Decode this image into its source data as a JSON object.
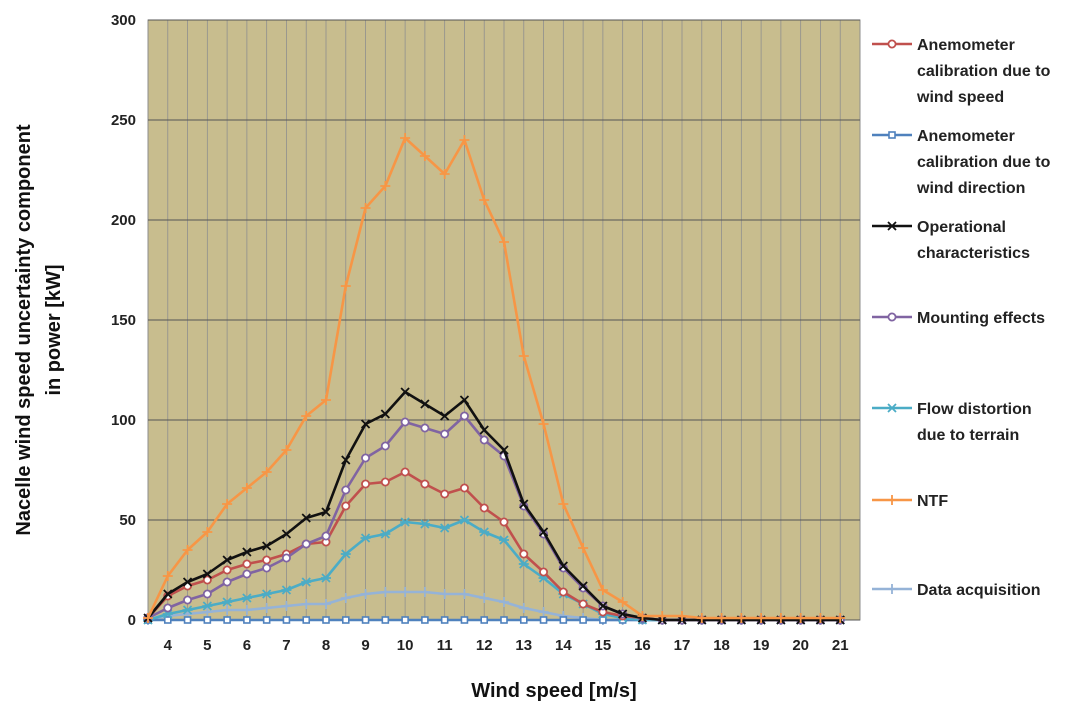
{
  "chart_data": {
    "type": "line",
    "xlabel": "Wind speed [m/s]",
    "ylabel": [
      "Nacelle wind speed uncertainty component",
      "in power [kW]"
    ],
    "ylim": [
      0,
      300
    ],
    "yticks": [
      0,
      50,
      100,
      150,
      200,
      250,
      300
    ],
    "xlim": [
      3.5,
      21.5
    ],
    "xticks": [
      4,
      5,
      6,
      7,
      8,
      9,
      10,
      11,
      12,
      13,
      14,
      15,
      16,
      17,
      18,
      19,
      20,
      21
    ],
    "grid": true,
    "legend_position": "right",
    "plot_background": "#c8bd8e",
    "x": [
      3.5,
      4,
      4.5,
      5,
      5.5,
      6,
      6.5,
      7,
      7.5,
      8,
      8.5,
      9,
      9.5,
      10,
      10.5,
      11,
      11.5,
      12,
      12.5,
      13,
      13.5,
      14,
      14.5,
      15,
      15.5,
      16,
      16.5,
      17,
      17.5,
      18,
      18.5,
      19,
      19.5,
      20,
      20.5,
      21
    ],
    "series": [
      {
        "name": "Anemometer calibration due to wind speed",
        "legend_lines": [
          "Anemometer",
          "calibration due to",
          "wind speed"
        ],
        "color": "#c0504d",
        "marker": "circle",
        "values": [
          1,
          12,
          17,
          20,
          25,
          28,
          30,
          33,
          38,
          39,
          57,
          68,
          69,
          74,
          68,
          63,
          66,
          56,
          49,
          33,
          24,
          14,
          8,
          4,
          2,
          1,
          0,
          0,
          0,
          0,
          0,
          0,
          0,
          0,
          0,
          0
        ]
      },
      {
        "name": "Anemometer calibration due to wind direction",
        "legend_lines": [
          "Anemometer",
          "calibration due to",
          "wind direction"
        ],
        "color": "#4f81bd",
        "marker": "square",
        "values": [
          0,
          0,
          0,
          0,
          0,
          0,
          0,
          0,
          0,
          0,
          0,
          0,
          0,
          0,
          0,
          0,
          0,
          0,
          0,
          0,
          0,
          0,
          0,
          0,
          0,
          0,
          0,
          0,
          0,
          0,
          0,
          0,
          0,
          0,
          0,
          0
        ]
      },
      {
        "name": "Operational characteristics",
        "legend_lines": [
          "Operational",
          "characteristics"
        ],
        "color": "#111111",
        "marker": "x",
        "values": [
          1,
          13,
          19,
          23,
          30,
          34,
          37,
          43,
          51,
          54,
          80,
          98,
          103,
          114,
          108,
          102,
          110,
          95,
          85,
          58,
          44,
          27,
          17,
          7,
          3,
          1,
          0,
          0,
          0,
          0,
          0,
          0,
          0,
          0,
          0,
          0
        ]
      },
      {
        "name": "Mounting effects",
        "legend_lines": [
          "Mounting effects"
        ],
        "color": "#8064a2",
        "marker": "circle",
        "values": [
          1,
          6,
          10,
          13,
          19,
          23,
          26,
          31,
          38,
          42,
          65,
          81,
          87,
          99,
          96,
          93,
          102,
          90,
          82,
          57,
          43,
          26,
          16,
          7,
          3,
          1,
          0,
          0,
          0,
          0,
          0,
          0,
          0,
          0,
          0,
          0
        ]
      },
      {
        "name": "Flow distortion due to terrain",
        "legend_lines": [
          "Flow distortion",
          "due to terrain"
        ],
        "color": "#4bacc6",
        "marker": "star",
        "values": [
          0,
          3,
          5,
          7,
          9,
          11,
          13,
          15,
          19,
          21,
          33,
          41,
          43,
          49,
          48,
          46,
          50,
          44,
          40,
          28,
          21,
          13,
          8,
          3,
          1,
          0,
          0,
          0,
          0,
          0,
          0,
          0,
          0,
          0,
          0,
          0
        ]
      },
      {
        "name": "NTF",
        "legend_lines": [
          "NTF"
        ],
        "color": "#f79646",
        "marker": "plus",
        "values": [
          1,
          22,
          35,
          44,
          58,
          66,
          74,
          85,
          102,
          110,
          167,
          206,
          217,
          241,
          232,
          223,
          240,
          210,
          189,
          132,
          98,
          58,
          36,
          15,
          9,
          2,
          2,
          2,
          1,
          1,
          1,
          1,
          1,
          1,
          1,
          1
        ]
      },
      {
        "name": "Data acquisition",
        "legend_lines": [
          "Data acquisition"
        ],
        "color": "#95b3d7",
        "marker": "plus",
        "values": [
          0,
          2,
          3,
          4,
          5,
          5,
          6,
          7,
          8,
          8,
          11,
          13,
          14,
          14,
          14,
          13,
          13,
          11,
          9,
          6,
          4,
          2,
          1,
          0,
          0,
          0,
          0,
          0,
          0,
          0,
          0,
          0,
          0,
          0,
          0,
          0
        ]
      }
    ]
  }
}
